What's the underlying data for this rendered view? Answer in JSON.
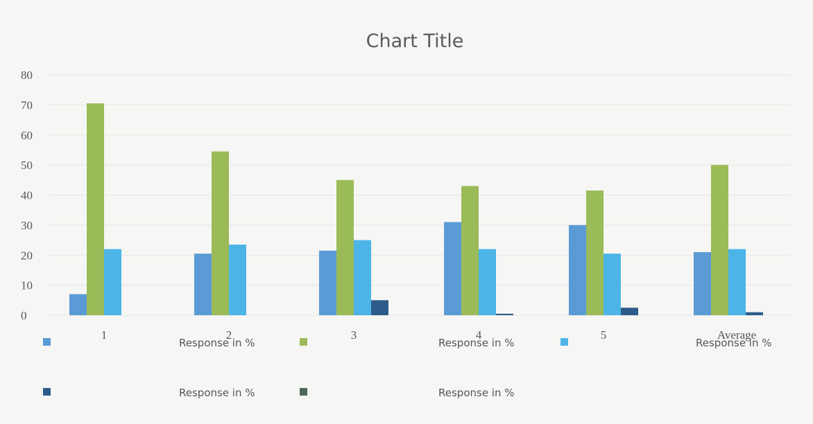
{
  "chart_data": {
    "type": "bar",
    "title": "Chart Title",
    "categories": [
      "1",
      "2",
      "3",
      "4",
      "5",
      "Average"
    ],
    "ylim": [
      0,
      80
    ],
    "yticks": [
      0,
      10,
      20,
      30,
      40,
      50,
      60,
      70,
      80
    ],
    "grid": true,
    "legend_position": "bottom",
    "series": [
      {
        "name": "Response in %",
        "color": "#5b9bd5",
        "values": [
          7,
          20.5,
          21.5,
          31,
          30,
          21
        ]
      },
      {
        "name": "Response in %",
        "color": "#9bbb59",
        "values": [
          70.5,
          54.5,
          45,
          43,
          41.5,
          50
        ]
      },
      {
        "name": "Response in %",
        "color": "#4cb4e7",
        "values": [
          22,
          23.5,
          25,
          22,
          20.5,
          22
        ]
      },
      {
        "name": "Response in %",
        "color": "#2e5c8a",
        "values": [
          0,
          0,
          5,
          0.5,
          2.5,
          1
        ]
      },
      {
        "name": "Response in %",
        "color": "#4b6b57",
        "values": [
          0,
          0,
          0,
          0,
          0,
          0
        ]
      }
    ]
  }
}
